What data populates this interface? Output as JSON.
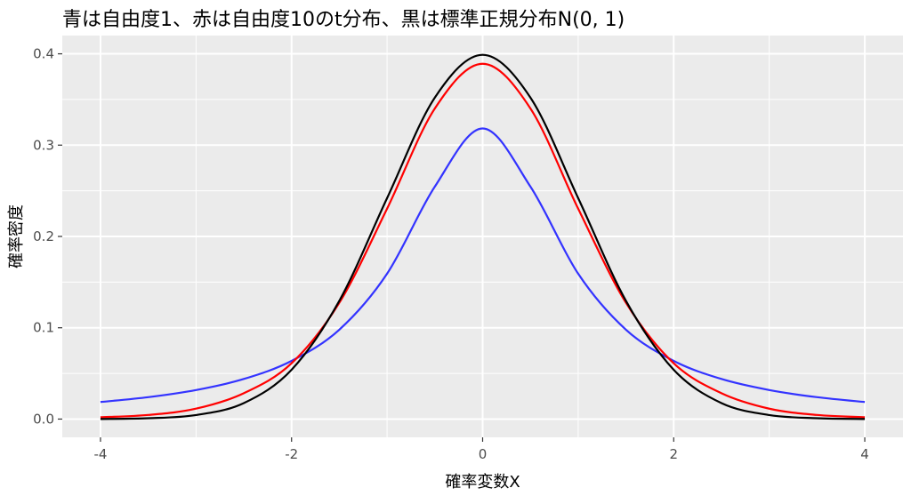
{
  "chart_data": {
    "type": "line",
    "title": "青は自由度1、赤は自由度10のt分布、黒は標準正規分布N(0, 1)",
    "xlabel": "確率変数X",
    "ylabel": "確率密度",
    "xlim": [
      -4,
      4
    ],
    "ylim": [
      0,
      0.4
    ],
    "x_ticks": [
      -4,
      -2,
      0,
      2,
      4
    ],
    "x_tick_labels": [
      "-4",
      "-2",
      "0",
      "2",
      "4"
    ],
    "y_ticks": [
      0.0,
      0.1,
      0.2,
      0.3,
      0.4
    ],
    "y_tick_labels": [
      "0.0",
      "0.1",
      "0.2",
      "0.3",
      "0.4"
    ],
    "grid": true,
    "background": "#ebebeb",
    "series": [
      {
        "color": "#3333ff",
        "x": [
          -4.0,
          -3.5,
          -3.0,
          -2.5,
          -2.0,
          -1.5,
          -1.0,
          -0.5,
          0.0,
          0.5,
          1.0,
          1.5,
          2.0,
          2.5,
          3.0,
          3.5,
          4.0
        ],
        "values": [
          0.0187,
          0.024,
          0.0318,
          0.0439,
          0.0637,
          0.0979,
          0.1592,
          0.2546,
          0.3183,
          0.2546,
          0.1592,
          0.0979,
          0.0637,
          0.0439,
          0.0318,
          0.024,
          0.0187
        ]
      },
      {
        "color": "#ff0000",
        "x": [
          -4.0,
          -3.5,
          -3.0,
          -2.5,
          -2.0,
          -1.5,
          -1.0,
          -0.5,
          0.0,
          0.5,
          1.0,
          1.5,
          2.0,
          2.5,
          3.0,
          3.5,
          4.0
        ],
        "values": [
          0.002,
          0.0045,
          0.0114,
          0.0283,
          0.0611,
          0.1274,
          0.2304,
          0.3402,
          0.3891,
          0.3402,
          0.2304,
          0.1274,
          0.0611,
          0.0283,
          0.0114,
          0.0045,
          0.002
        ]
      },
      {
        "color": "#000000",
        "x": [
          -4.0,
          -3.5,
          -3.0,
          -2.5,
          -2.0,
          -1.5,
          -1.0,
          -0.5,
          0.0,
          0.5,
          1.0,
          1.5,
          2.0,
          2.5,
          3.0,
          3.5,
          4.0
        ],
        "values": [
          0.0001,
          0.0009,
          0.0044,
          0.0175,
          0.054,
          0.1295,
          0.242,
          0.3521,
          0.3989,
          0.3521,
          0.242,
          0.1295,
          0.054,
          0.0175,
          0.0044,
          0.0009,
          0.0001
        ]
      }
    ]
  }
}
